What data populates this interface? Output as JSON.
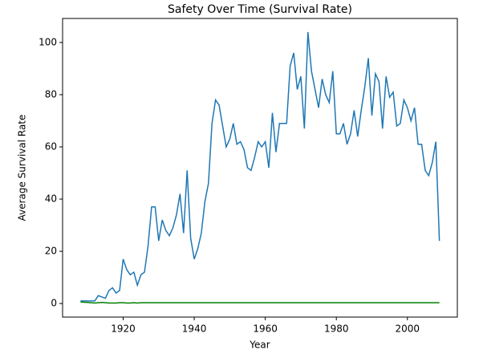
{
  "chart_data": {
    "type": "line",
    "title": "Safety  Over Time (Survival Rate)",
    "xlabel": "Year",
    "ylabel": "Average Survival Rate",
    "x": [
      1908,
      1909,
      1910,
      1911,
      1912,
      1913,
      1914,
      1915,
      1916,
      1917,
      1918,
      1919,
      1920,
      1921,
      1922,
      1923,
      1924,
      1925,
      1926,
      1927,
      1928,
      1929,
      1930,
      1931,
      1932,
      1933,
      1934,
      1935,
      1936,
      1937,
      1938,
      1939,
      1940,
      1941,
      1942,
      1943,
      1944,
      1945,
      1946,
      1947,
      1948,
      1949,
      1950,
      1951,
      1952,
      1953,
      1954,
      1955,
      1956,
      1957,
      1958,
      1959,
      1960,
      1961,
      1962,
      1963,
      1964,
      1965,
      1966,
      1967,
      1968,
      1969,
      1970,
      1971,
      1972,
      1973,
      1974,
      1975,
      1976,
      1977,
      1978,
      1979,
      1980,
      1981,
      1982,
      1983,
      1984,
      1985,
      1986,
      1987,
      1988,
      1989,
      1990,
      1991,
      1992,
      1993,
      1994,
      1995,
      1996,
      1997,
      1998,
      1999,
      2000,
      2001,
      2002,
      2003,
      2004,
      2005,
      2006,
      2007,
      2008,
      2009
    ],
    "series": [
      {
        "color": "#1f77b4",
        "values": [
          1,
          1,
          1,
          1,
          1,
          3,
          2.5,
          2,
          5,
          6,
          4,
          5,
          17,
          13,
          11,
          12,
          7,
          11,
          12,
          22,
          37,
          37,
          24,
          32,
          28,
          26,
          29,
          34,
          42,
          27,
          51,
          25,
          17,
          21,
          27,
          39,
          46,
          69,
          78,
          76,
          68,
          60,
          63,
          69,
          61,
          62,
          59,
          52,
          51,
          56,
          62,
          60,
          62,
          52,
          73,
          58,
          69,
          69,
          69,
          91,
          96,
          82,
          87,
          67,
          104,
          89,
          82,
          75,
          86,
          80,
          77,
          89,
          65,
          65,
          69,
          61,
          65,
          74,
          64,
          74,
          83,
          94,
          72,
          88,
          85,
          67,
          87,
          79,
          81,
          68,
          69,
          78,
          75,
          70,
          75,
          61,
          61,
          51,
          49,
          54,
          62,
          24
        ]
      },
      {
        "color": "#008000",
        "values": [
          0.6,
          0.5,
          0.4,
          0.3,
          0.2,
          0.3,
          0.4,
          0.3,
          0.2,
          0.2,
          0.2,
          0.3,
          0.3,
          0.2,
          0.2,
          0.3,
          0.2,
          0.3,
          0.3,
          0.3,
          0.3,
          0.3,
          0.3,
          0.3,
          0.3,
          0.3,
          0.3,
          0.3,
          0.3,
          0.3,
          0.3,
          0.3,
          0.3,
          0.3,
          0.3,
          0.3,
          0.3,
          0.3,
          0.3,
          0.3,
          0.3,
          0.3,
          0.3,
          0.3,
          0.3,
          0.3,
          0.3,
          0.3,
          0.3,
          0.3,
          0.3,
          0.3,
          0.3,
          0.3,
          0.3,
          0.3,
          0.3,
          0.3,
          0.3,
          0.3,
          0.3,
          0.3,
          0.3,
          0.3,
          0.3,
          0.3,
          0.3,
          0.3,
          0.3,
          0.3,
          0.3,
          0.3,
          0.3,
          0.3,
          0.3,
          0.3,
          0.3,
          0.3,
          0.3,
          0.3,
          0.3,
          0.3,
          0.3,
          0.3,
          0.3,
          0.3,
          0.3,
          0.3,
          0.3,
          0.3,
          0.3,
          0.3,
          0.3,
          0.3,
          0.3,
          0.3,
          0.3,
          0.3,
          0.3,
          0.3,
          0.3,
          0.3
        ]
      }
    ],
    "xlim": [
      1902.95,
      2014.05
    ],
    "ylim": [
      -5.2,
      109.2
    ],
    "xticks": [
      1920,
      1940,
      1960,
      1980,
      2000
    ],
    "yticks": [
      0,
      20,
      40,
      60,
      80,
      100
    ]
  }
}
